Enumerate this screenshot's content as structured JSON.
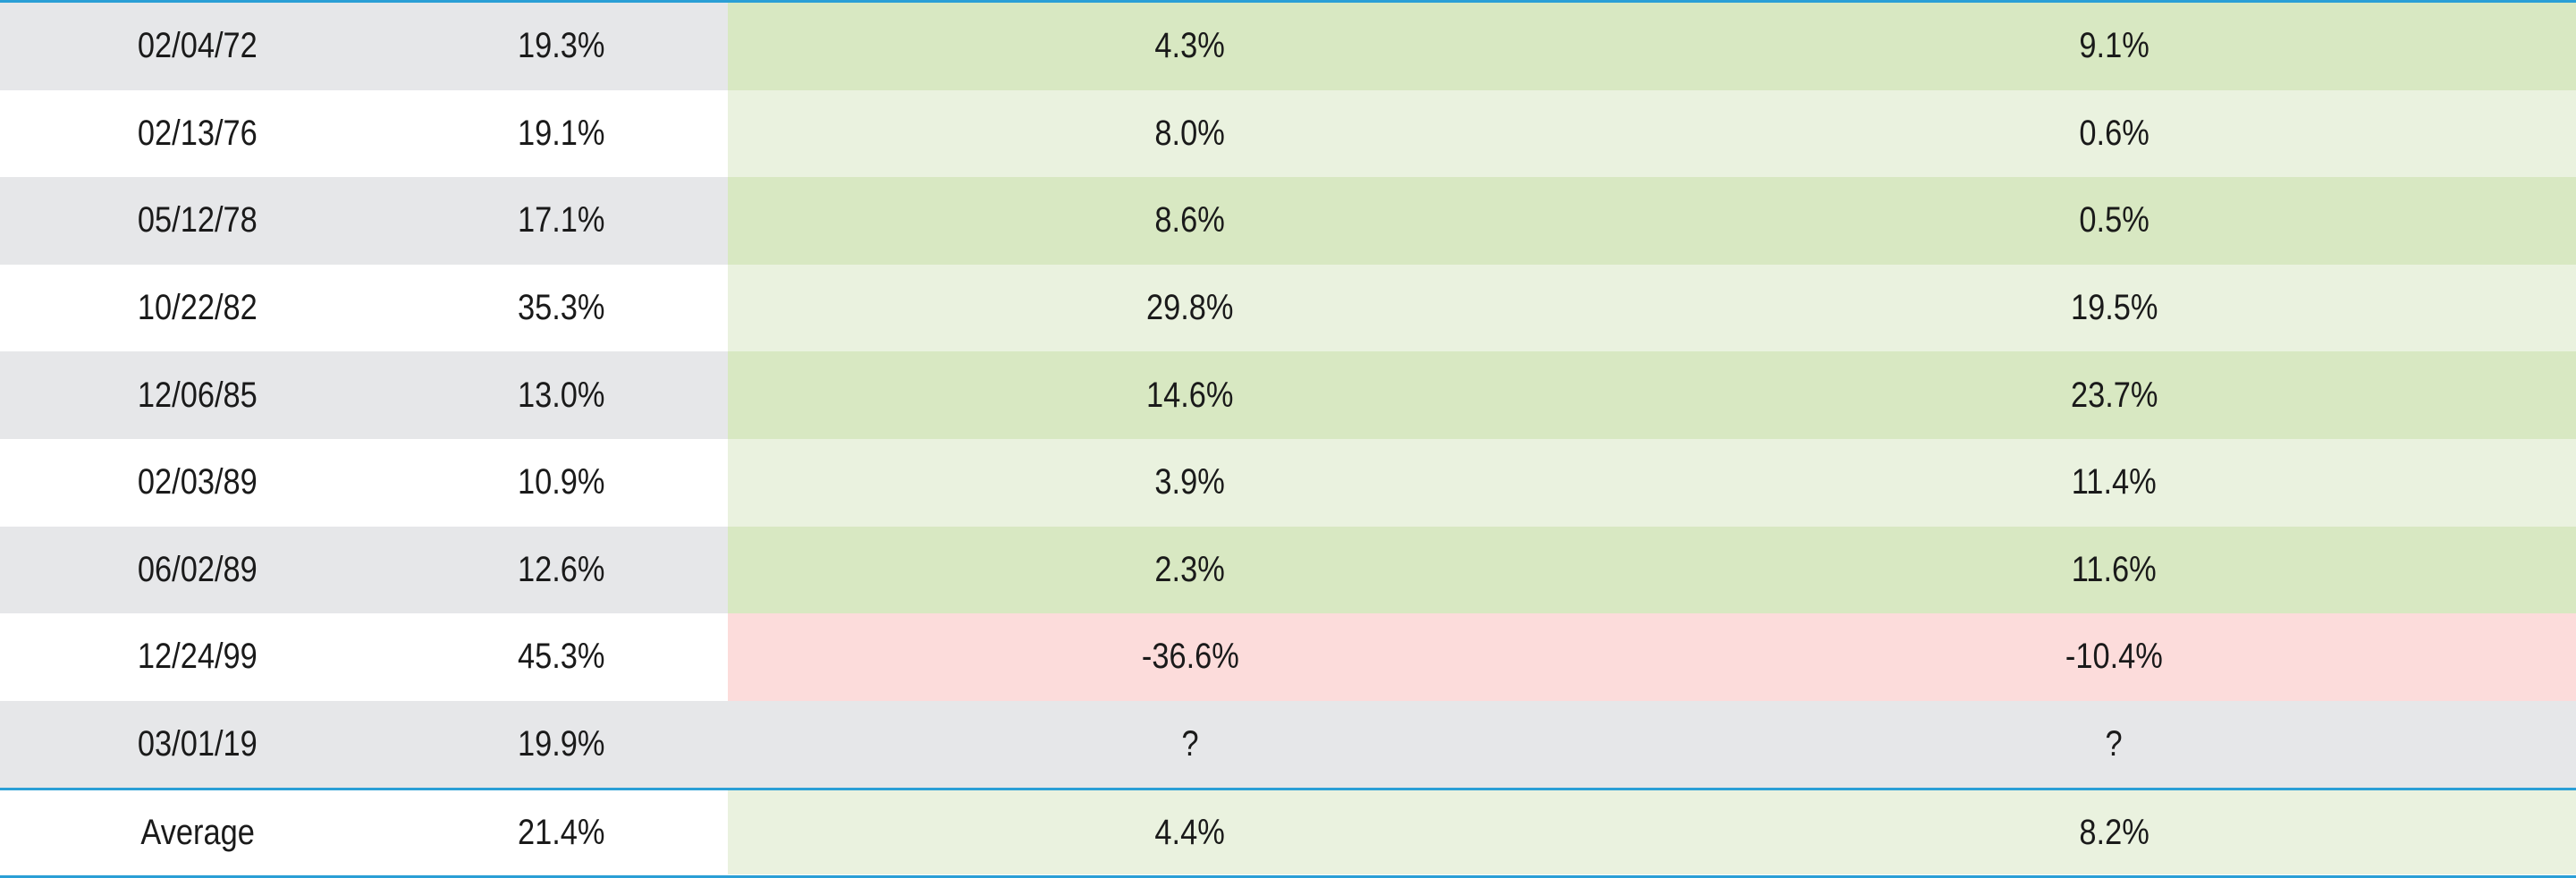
{
  "rows": [
    {
      "date": "02/04/72",
      "gain": "19.3%",
      "col3": "4.3%",
      "col4": "9.1%"
    },
    {
      "date": "02/13/76",
      "gain": "19.1%",
      "col3": "8.0%",
      "col4": "0.6%"
    },
    {
      "date": "05/12/78",
      "gain": "17.1%",
      "col3": "8.6%",
      "col4": "0.5%"
    },
    {
      "date": "10/22/82",
      "gain": "35.3%",
      "col3": "29.8%",
      "col4": "19.5%"
    },
    {
      "date": "12/06/85",
      "gain": "13.0%",
      "col3": "14.6%",
      "col4": "23.7%"
    },
    {
      "date": "02/03/89",
      "gain": "10.9%",
      "col3": "3.9%",
      "col4": "11.4%"
    },
    {
      "date": "06/02/89",
      "gain": "12.6%",
      "col3": "2.3%",
      "col4": "11.6%"
    },
    {
      "date": "12/24/99",
      "gain": "45.3%",
      "col3": "-36.6%",
      "col4": "-10.4%"
    },
    {
      "date": "03/01/19",
      "gain": "19.9%",
      "col3": "?",
      "col4": "?"
    }
  ],
  "average": {
    "label": "Average",
    "gain": "21.4%",
    "col3": "4.4%",
    "col4": "8.2%"
  },
  "colors": {
    "rule": "#2a9fd6",
    "gray": "#e6e7e9",
    "green_dark": "#d8e8c2",
    "green_light": "#eaf2df",
    "red_light": "#fcdcdb"
  }
}
